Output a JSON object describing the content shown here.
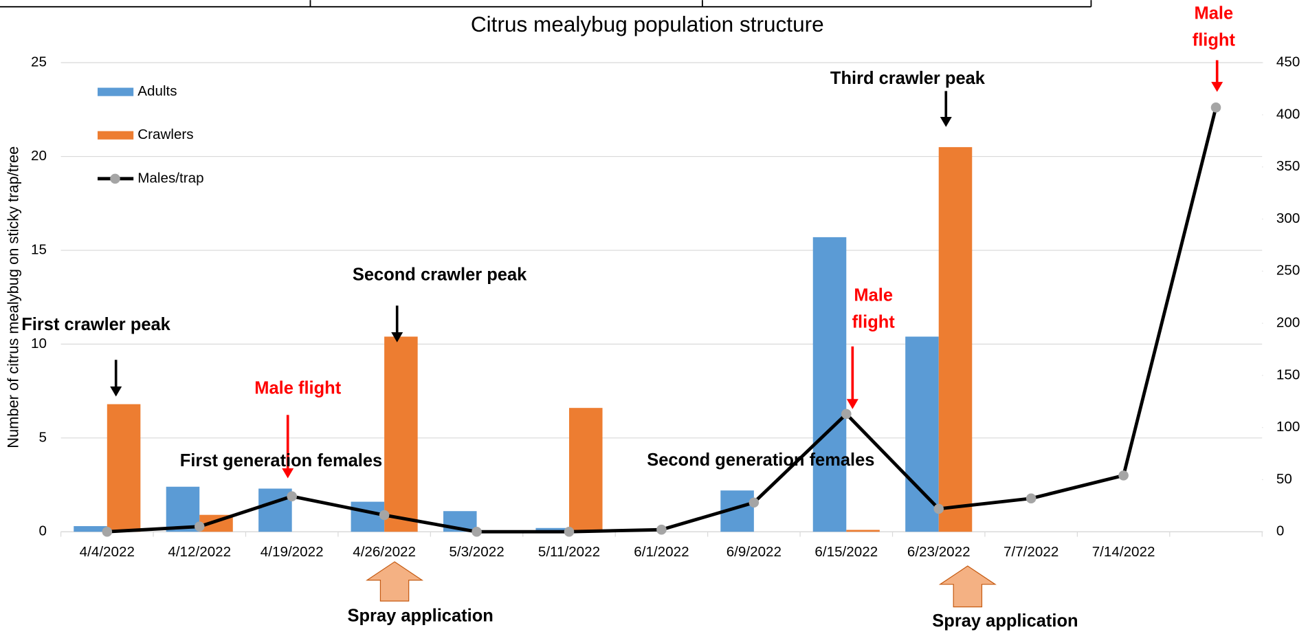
{
  "chart_data": {
    "type": "bar-line",
    "title": "Citrus mealybug population structure",
    "y_label": "Number of citrus mealybug on sticky trap/tree",
    "categories": [
      "4/4/2022",
      "4/12/2022",
      "4/19/2022",
      "4/26/2022",
      "5/3/2022",
      "5/11/2022",
      "6/1/2022",
      "6/9/2022",
      "6/15/2022",
      "6/23/2022",
      "7/7/2022",
      "7/14/2022",
      null
    ],
    "series": [
      {
        "name": "Adults",
        "color": "#5b9bd5",
        "values": [
          0.3,
          2.4,
          2.3,
          1.6,
          1.1,
          0.2,
          0,
          2.2,
          15.7,
          10.4,
          0,
          0,
          null
        ]
      },
      {
        "name": "Crawlers",
        "color": "#ed7d31",
        "values": [
          6.8,
          0.9,
          0,
          10.4,
          0,
          6.6,
          0,
          0,
          0.1,
          20.5,
          0,
          0,
          null
        ]
      },
      {
        "name": "Males/trap",
        "type": "line",
        "axis": "y2",
        "color": "#000000",
        "marker_color": "#a5a5a5",
        "values": [
          0,
          5,
          34,
          16,
          0,
          0,
          2,
          28,
          113,
          22,
          32,
          54,
          407
        ]
      }
    ],
    "ylim": [
      0,
      25
    ],
    "yticks": [
      0,
      5,
      10,
      15,
      20,
      25
    ],
    "y2lim": [
      0,
      450
    ],
    "y2ticks": [
      0,
      50,
      100,
      150,
      200,
      250,
      300,
      350,
      400,
      450
    ],
    "grid": true,
    "legend": "upper left",
    "annotations": [
      {
        "text": "First crawler peak",
        "color": "#000000"
      },
      {
        "text": "Second crawler peak",
        "color": "#000000"
      },
      {
        "text": "Third crawler peak",
        "color": "#000000"
      },
      {
        "text": "Male flight",
        "color": "#ff0000"
      },
      {
        "text": [
          "Male",
          "flight"
        ],
        "color": "#ff0000"
      },
      {
        "text": [
          "Male",
          "flight"
        ],
        "color": "#ff0000"
      },
      {
        "text": "First generation females",
        "color": "#000000"
      },
      {
        "text": "Second generation females",
        "color": "#000000"
      },
      {
        "text": "Spray application",
        "color": "#000000"
      },
      {
        "text": "Spray application",
        "color": "#000000"
      }
    ]
  }
}
